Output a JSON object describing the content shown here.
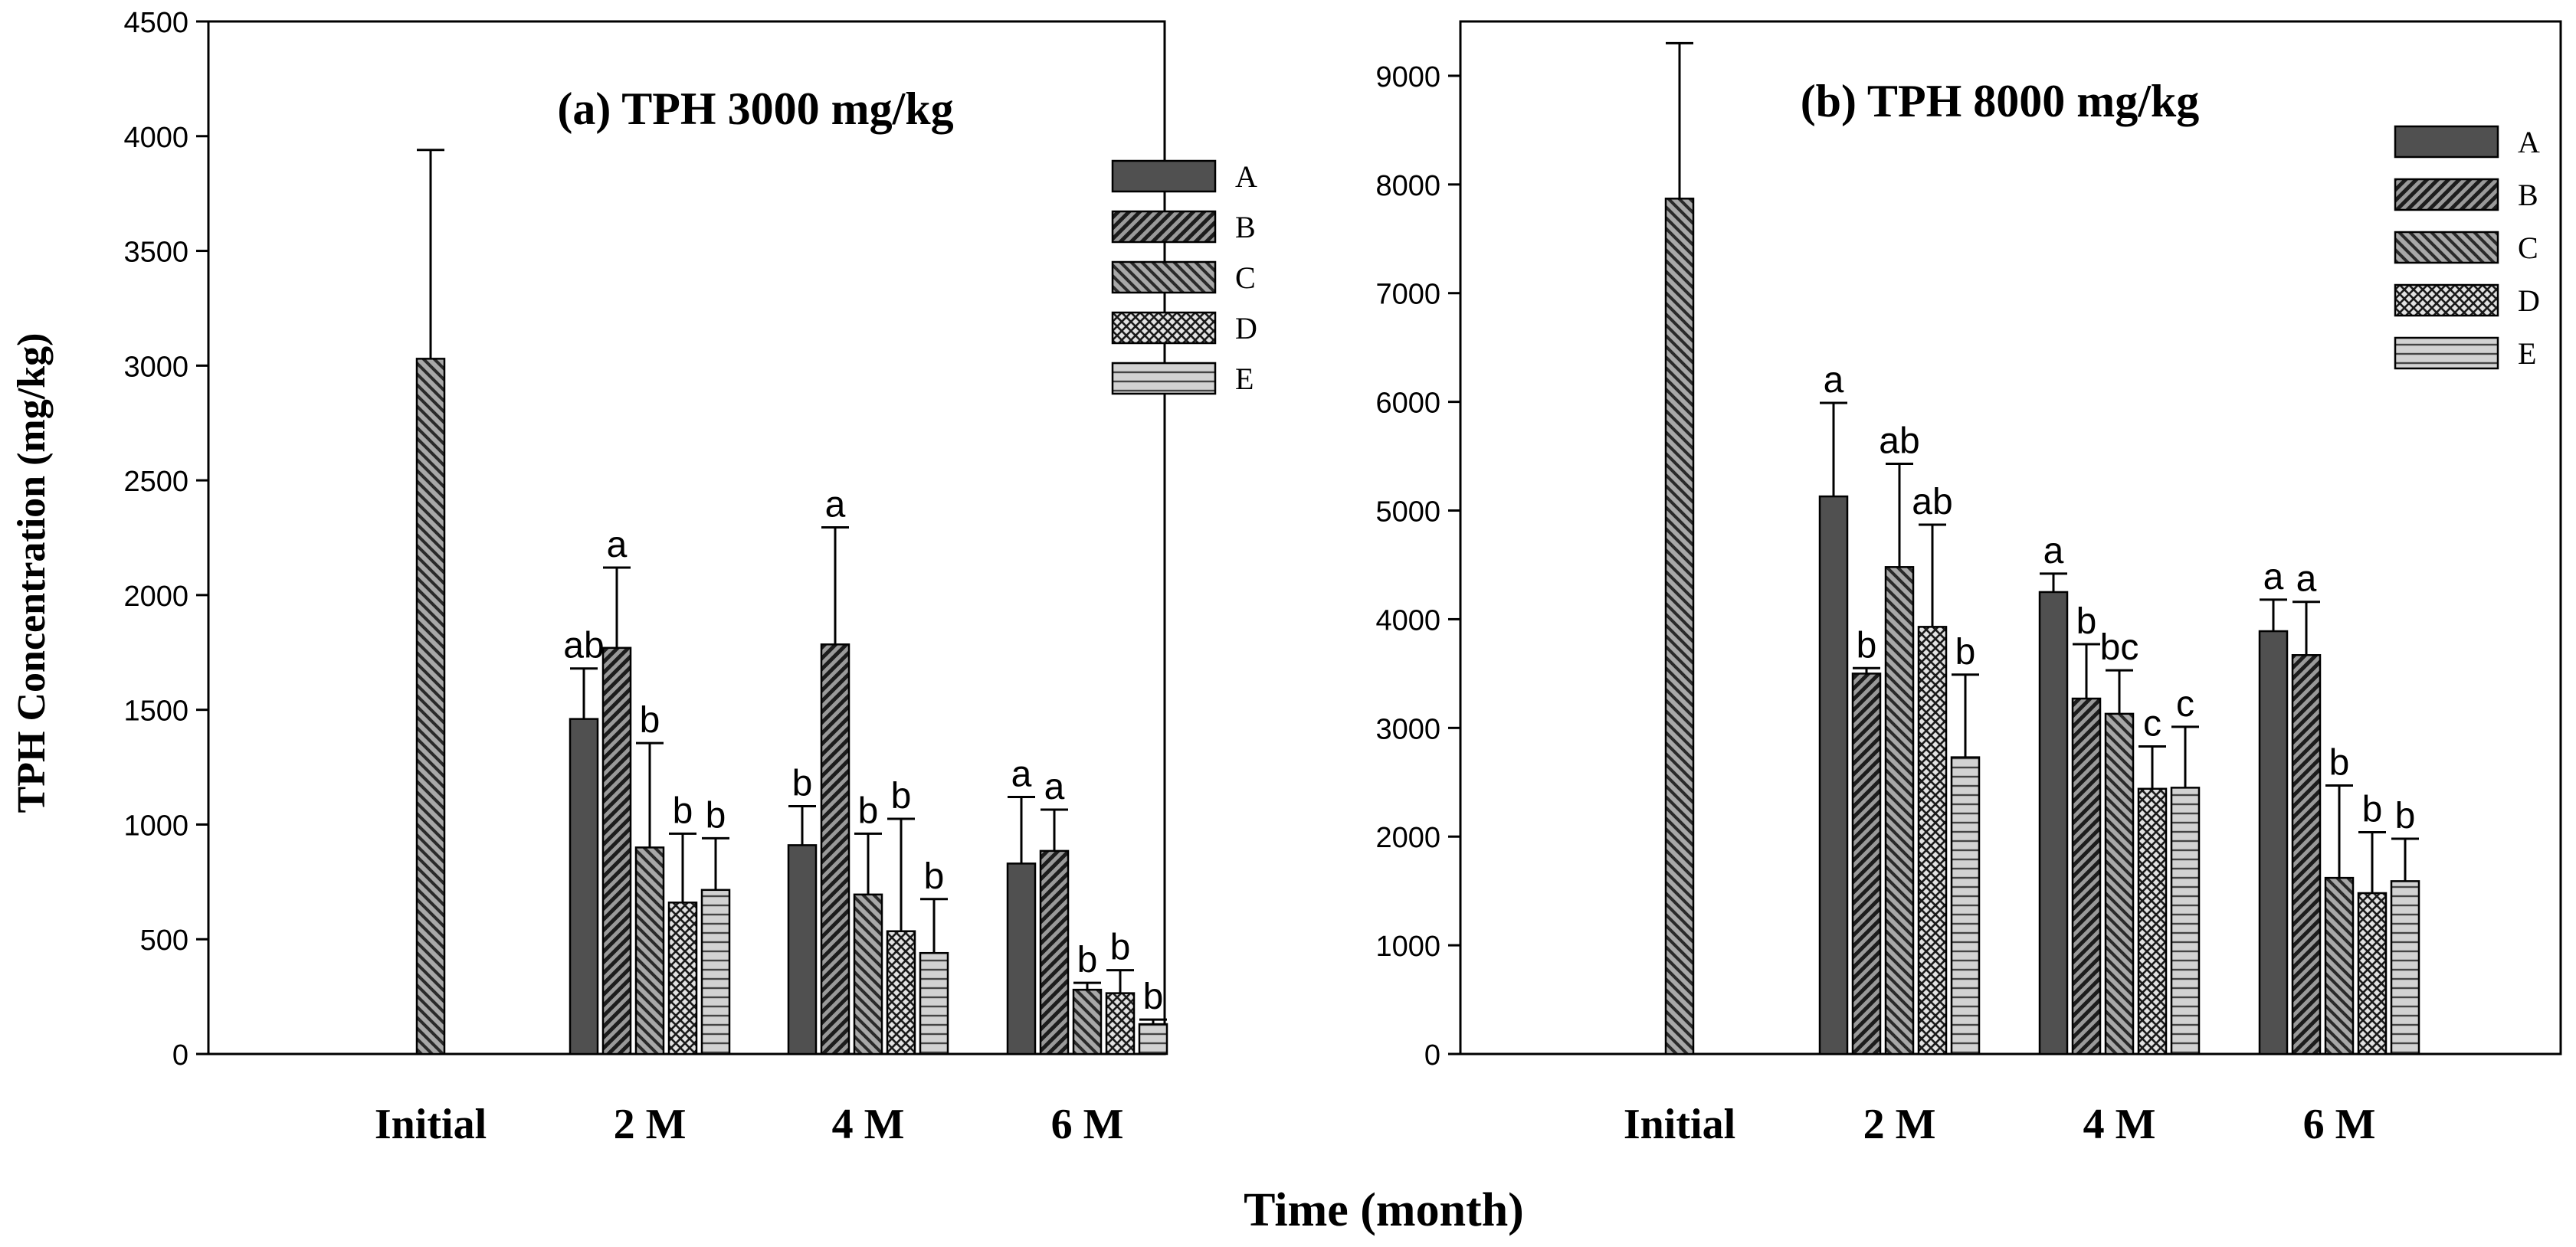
{
  "figure": {
    "ylabel": "TPH Concentration (mg/kg)",
    "xlabel": "Time (month)"
  },
  "colors": {
    "A": "#505050",
    "B": "#6e6e6e",
    "C": "#8a8a8a",
    "D": "#c4c4c4",
    "E": "#d2d2d2",
    "ink": "#000000"
  },
  "chart_data": [
    {
      "type": "bar",
      "title": "(a) TPH 3000 mg/kg",
      "xlabel": "Time (month)",
      "ylabel": "TPH Concentration (mg/kg)",
      "ylim": [
        0,
        4500
      ],
      "yticks": [
        0,
        500,
        1000,
        1500,
        2000,
        2500,
        3000,
        3500,
        4000,
        4500
      ],
      "categories": [
        "Initial",
        "2 M",
        "4 M",
        "6 M"
      ],
      "legend": [
        "A",
        "B",
        "C",
        "D",
        "E"
      ],
      "legend_position": "top-right",
      "initial": {
        "series": "C",
        "value": 3030,
        "error": 910
      },
      "series": [
        {
          "name": "A",
          "values": [
            null,
            1460,
            910,
            830
          ],
          "errors": [
            null,
            220,
            170,
            290
          ],
          "letters": [
            null,
            "ab",
            "b",
            "a"
          ]
        },
        {
          "name": "B",
          "values": [
            null,
            1770,
            1785,
            885
          ],
          "errors": [
            null,
            350,
            510,
            180
          ],
          "letters": [
            null,
            "a",
            "a",
            "a"
          ]
        },
        {
          "name": "C",
          "values": [
            null,
            900,
            695,
            280
          ],
          "errors": [
            null,
            455,
            265,
            30
          ],
          "letters": [
            null,
            "b",
            "b",
            "b"
          ]
        },
        {
          "name": "D",
          "values": [
            null,
            660,
            535,
            265
          ],
          "errors": [
            null,
            300,
            490,
            100
          ],
          "letters": [
            null,
            "b",
            "b",
            "b"
          ]
        },
        {
          "name": "E",
          "values": [
            null,
            715,
            440,
            130
          ],
          "errors": [
            null,
            225,
            235,
            20
          ],
          "letters": [
            null,
            "b",
            "b",
            "b"
          ]
        }
      ]
    },
    {
      "type": "bar",
      "title": "(b) TPH 8000 mg/kg",
      "xlabel": "Time (month)",
      "ylabel": "TPH Concentration (mg/kg)",
      "ylim": [
        0,
        9500
      ],
      "yticks": [
        0,
        1000,
        2000,
        3000,
        4000,
        5000,
        6000,
        7000,
        8000,
        9000
      ],
      "categories": [
        "Initial",
        "2 M",
        "4 M",
        "6 M"
      ],
      "legend": [
        "A",
        "B",
        "C",
        "D",
        "E"
      ],
      "legend_position": "top-right",
      "initial": {
        "series": "C",
        "value": 7870,
        "error": 1430
      },
      "series": [
        {
          "name": "A",
          "values": [
            null,
            5130,
            4250,
            3890
          ],
          "errors": [
            null,
            860,
            170,
            290
          ],
          "letters": [
            null,
            "a",
            "a",
            "a"
          ]
        },
        {
          "name": "B",
          "values": [
            null,
            3500,
            3270,
            3670
          ],
          "errors": [
            null,
            50,
            500,
            490
          ],
          "letters": [
            null,
            "b",
            "b",
            "a"
          ]
        },
        {
          "name": "C",
          "values": [
            null,
            4480,
            3130,
            1620
          ],
          "errors": [
            null,
            950,
            400,
            850
          ],
          "letters": [
            null,
            "ab",
            "bc",
            "b"
          ]
        },
        {
          "name": "D",
          "values": [
            null,
            3930,
            2440,
            1480
          ],
          "errors": [
            null,
            940,
            390,
            560
          ],
          "letters": [
            null,
            "ab",
            "c",
            "b"
          ]
        },
        {
          "name": "E",
          "values": [
            null,
            2730,
            2450,
            1590
          ],
          "errors": [
            null,
            760,
            560,
            390
          ],
          "letters": [
            null,
            "b",
            "c",
            "b"
          ]
        }
      ]
    }
  ]
}
